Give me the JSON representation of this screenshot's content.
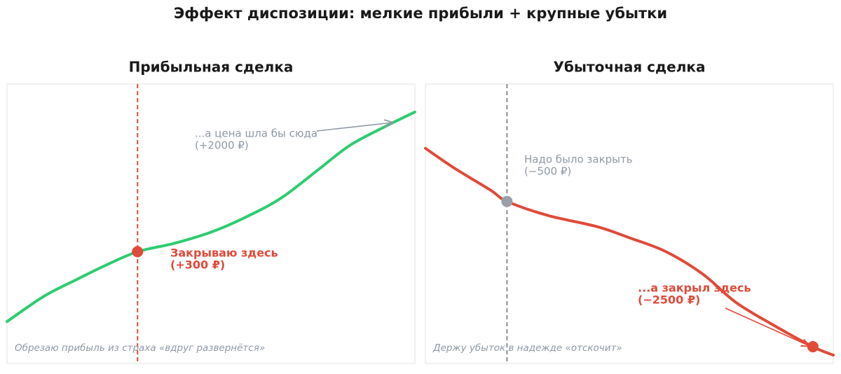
{
  "title": "Эффект диспозиции: мелкие прибыли + крупные убытки",
  "chart_data": [
    {
      "type": "line",
      "title": "Прибыльная сделка",
      "x": [
        0,
        9,
        17,
        24,
        32,
        41,
        50,
        58,
        67,
        76,
        84,
        93,
        100
      ],
      "values": [
        15,
        24,
        30,
        35,
        40,
        43,
        47,
        52,
        59,
        69,
        78,
        85,
        90
      ],
      "color": "#2ecc71",
      "xlim": [
        0,
        100
      ],
      "ylim": [
        0,
        100
      ],
      "marker": {
        "x": 32,
        "y": 40,
        "color": "#e04a3a"
      },
      "vline": {
        "x": 32,
        "color": "#e04a3a"
      },
      "annotations": [
        {
          "lines": [
            "...а цена шла бы сюда",
            "(+2000 ₽)"
          ],
          "color": "#8f99a5"
        },
        {
          "lines": [
            "Закрываю здесь",
            "(+300 ₽)"
          ],
          "color": "#e04a3a"
        }
      ],
      "caption": "Обрезаю прибыль из страха «вдруг развернётся»"
    },
    {
      "type": "line",
      "title": "Убыточная сделка",
      "x": [
        0,
        7,
        16,
        20,
        30,
        42,
        50,
        59,
        68,
        76,
        85,
        95,
        100
      ],
      "values": [
        77,
        70,
        62,
        58,
        53,
        49,
        45,
        40,
        32,
        22,
        14,
        6,
        3
      ],
      "color": "#e04a3a",
      "xlim": [
        0,
        100
      ],
      "ylim": [
        0,
        100
      ],
      "marker": {
        "x": 20,
        "y": 58,
        "color": "#9aa0aa"
      },
      "marker2": {
        "x": 95,
        "y": 6,
        "color": "#e04a3a"
      },
      "vline": {
        "x": 20,
        "color": "#8a8f96"
      },
      "annotations": [
        {
          "lines": [
            "Надо было закрыть",
            "(−500 ₽)"
          ],
          "color": "#8f99a5"
        },
        {
          "lines": [
            "...а закрыл здесь",
            "(−2500 ₽)"
          ],
          "color": "#e04a3a"
        }
      ],
      "caption": "Держу убыток в надежде «отскочит»"
    }
  ]
}
